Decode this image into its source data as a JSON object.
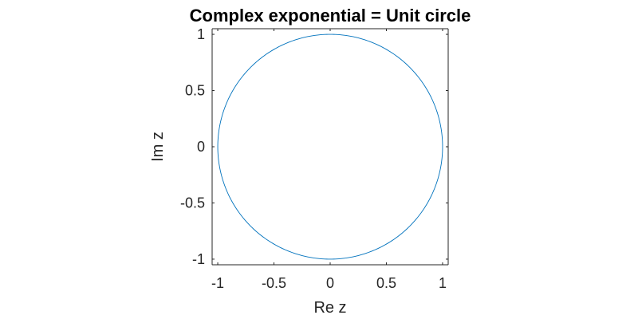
{
  "chart_data": {
    "type": "line",
    "title": "Complex exponential = Unit circle",
    "xlabel": "Re z",
    "ylabel": "Im z",
    "xlim": [
      -1.05,
      1.05
    ],
    "ylim": [
      -1.05,
      1.05
    ],
    "xticks": [
      -1,
      -0.5,
      0,
      0.5,
      1
    ],
    "yticks": [
      -1,
      -0.5,
      0,
      0.5,
      1
    ],
    "xtick_labels": [
      "-1",
      "-0.5",
      "0",
      "0.5",
      "1"
    ],
    "ytick_labels": [
      "-1",
      "-0.5",
      "0",
      "0.5",
      "1"
    ],
    "grid": false,
    "box": true,
    "series": [
      {
        "function": "z = exp(i*theta)",
        "theta_range": [
          0,
          6.283185307179586
        ],
        "x_of": "cos(theta)",
        "y_of": "sin(theta)",
        "color": "#0072BD"
      }
    ]
  },
  "colors": {
    "axis": "#262626",
    "line": "#0072BD",
    "background": "#ffffff"
  }
}
